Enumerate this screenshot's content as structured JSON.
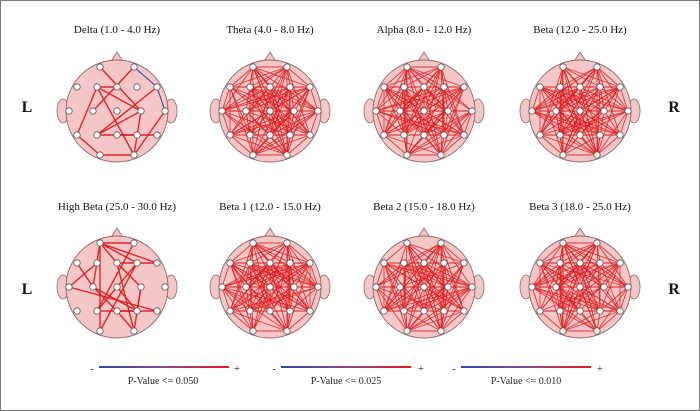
{
  "side_labels": {
    "left": "L",
    "right": "R"
  },
  "panels": [
    {
      "title": "Delta (1.0 - 4.0 Hz)",
      "density": "sparse",
      "negative_links": 2
    },
    {
      "title": "Theta (4.0 - 8.0 Hz)",
      "density": "dense",
      "negative_links": 0
    },
    {
      "title": "Alpha (8.0 - 12.0 Hz)",
      "density": "dense",
      "negative_links": 0
    },
    {
      "title": "Beta (12.0 - 25.0 Hz)",
      "density": "dense",
      "negative_links": 0
    },
    {
      "title": "High Beta (25.0 - 30.0 Hz)",
      "density": "sparse",
      "negative_links": 0
    },
    {
      "title": "Beta 1 (12.0 - 15.0 Hz)",
      "density": "dense",
      "negative_links": 0
    },
    {
      "title": "Beta 2 (15.0 - 18.0 Hz)",
      "density": "dense",
      "negative_links": 0
    },
    {
      "title": "Beta 3 (18.0 - 25.0 Hz)",
      "density": "dense",
      "negative_links": 0
    }
  ],
  "legends": [
    {
      "minus": "-",
      "plus": "+",
      "label": "P-Value <= 0.050"
    },
    {
      "minus": "-",
      "plus": "+",
      "label": "P-Value <= 0.025"
    },
    {
      "minus": "-",
      "plus": "+",
      "label": "P-Value <= 0.010"
    }
  ],
  "colors": {
    "head_fill": "#f4c6c6",
    "head_stroke": "#8c6a6a",
    "positive_link": "#e31a1c",
    "negative_link": "#2b4aa8",
    "electrode_fill": "#ffffff",
    "electrode_stroke": "#555555"
  }
}
